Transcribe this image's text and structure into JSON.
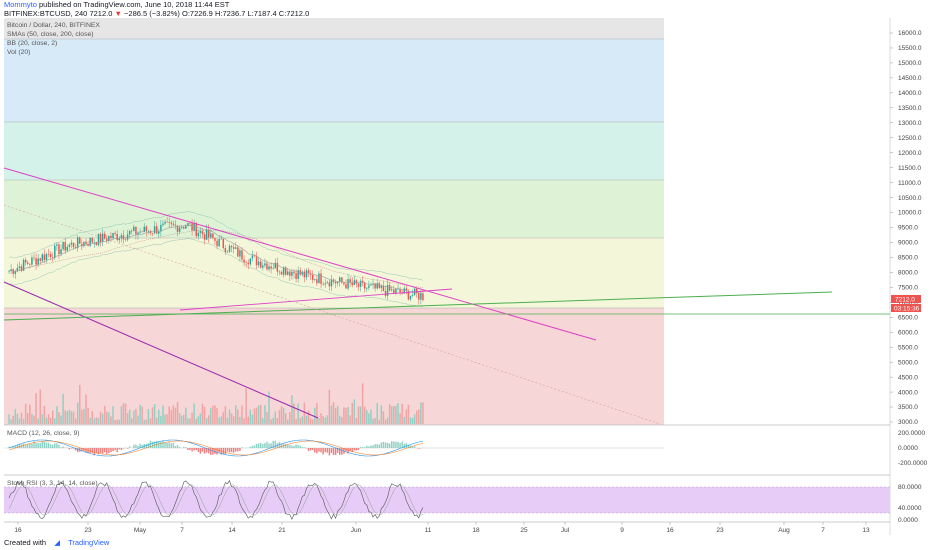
{
  "header": {
    "author": "Mommyto",
    "published": "published on TradingView.com, June 10, 2018 11:44 EST",
    "symbol": "BITFINEX:BTCUSD, 240",
    "last": "7212.0",
    "change": "−286.5 (−3.82%)",
    "open": "O:7226.9",
    "high": "H:7236.7",
    "low": "L:7187.4",
    "close": "C:7212.0"
  },
  "legend": {
    "title": "Bitcoin / Dollar, 240, BITFINEX",
    "smas": "SMAs (50, close, 200, close)",
    "bb": "BB (20, close, 2)",
    "vol": "Vol (20)",
    "macd": "MACD (12, 26, close, 9)",
    "stoch": "Stoch RSI (3, 3, 14, 14, close)"
  },
  "price_axis": {
    "ticks": [
      "16000.0",
      "15500.0",
      "15000.0",
      "14500.0",
      "14000.0",
      "13500.0",
      "13000.0",
      "12500.0",
      "12000.0",
      "11500.0",
      "11000.0",
      "10500.0",
      "10000.0",
      "9500.0",
      "9000.0",
      "8500.0",
      "8000.0",
      "7500.0",
      "7000.0",
      "6500.0",
      "6000.0",
      "5500.0",
      "5000.0",
      "4500.0",
      "4000.0",
      "3500.0",
      "3000.0"
    ],
    "last_price": "7212.0",
    "countdown": "03:15:36"
  },
  "macd_axis": [
    "200.0000",
    "0.0000",
    "-200.0000"
  ],
  "stoch_axis": [
    "80.0000",
    "40.0000",
    "0.0000"
  ],
  "date_axis": [
    "16",
    "23",
    "May",
    "7",
    "14",
    "21",
    "Jun",
    "11",
    "18",
    "25",
    "Jul",
    "9",
    "16",
    "23",
    "Aug",
    "7",
    "13"
  ],
  "colors": {
    "blue_zone": "#d6eaf8",
    "cyan_zone": "#d4f2ea",
    "green_zone": "#def3d6",
    "yellow_zone": "#f3f6d9",
    "red_zone": "#f6d6d6",
    "candle_up": "#26a69a",
    "candle_down": "#ef5350",
    "trend_magenta": "#e040c8",
    "trend_purple": "#9c27b0",
    "trend_green": "#4caf50",
    "stoch_band": "#e6ccf6"
  },
  "footer": {
    "created": "Created with",
    "brand": "TradingView"
  },
  "chart_data": {
    "type": "candlestick",
    "title": "Bitcoin / Dollar, 240, BITFINEX",
    "ylim": [
      3000,
      16300
    ],
    "x": [
      "Apr 16",
      "Apr 23",
      "May 1",
      "May 7",
      "May 14",
      "May 21",
      "Jun 1",
      "Jun 11"
    ],
    "close_approx": [
      8050,
      8900,
      9300,
      9600,
      8500,
      7900,
      7500,
      7212
    ],
    "current_price": 7212.0,
    "fib_levels": [
      16300,
      13400,
      11450,
      9450,
      7070
    ],
    "trendlines": [
      {
        "name": "upper descending",
        "from": [
          "Apr 10",
          11800
        ],
        "to": [
          "Jul 5",
          5900
        ]
      },
      {
        "name": "lower descending",
        "from": [
          "Apr 10",
          7850
        ],
        "to": [
          "May 28",
          3200
        ]
      },
      {
        "name": "green ascending support",
        "from": [
          "Apr 10",
          6950
        ],
        "to": [
          "Aug 7",
          7550
        ]
      }
    ]
  }
}
